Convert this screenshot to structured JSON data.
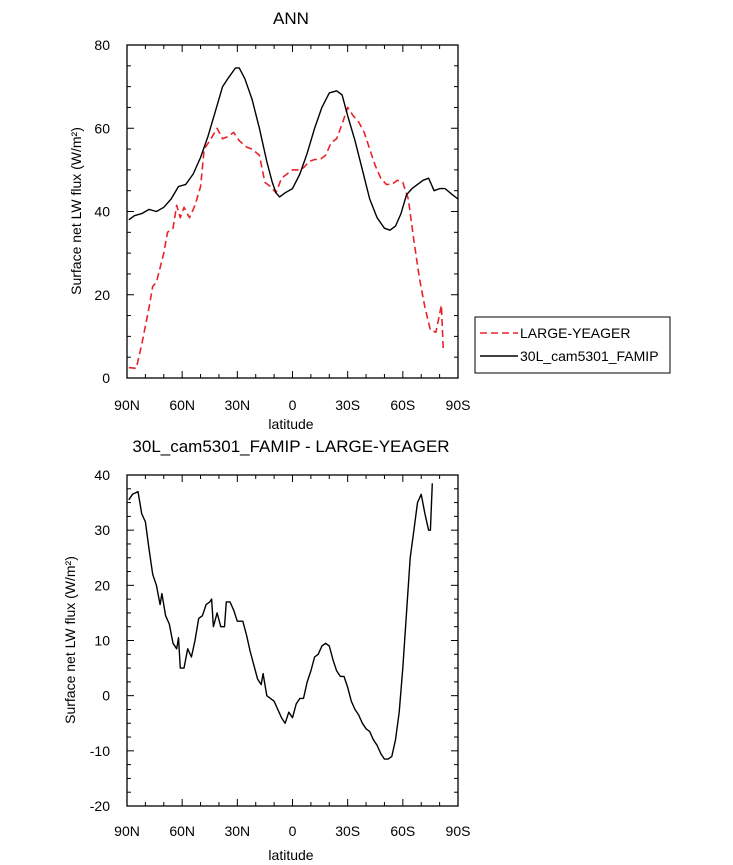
{
  "chart_data": [
    {
      "type": "line",
      "title": "ANN",
      "xlabel": "latitude",
      "ylabel": "Surface net LW flux (W/m²)",
      "xlim": [
        90,
        -90
      ],
      "ylim": [
        0,
        80
      ],
      "xticks": [
        {
          "value": 90,
          "label": "90N"
        },
        {
          "value": 60,
          "label": "60N"
        },
        {
          "value": 30,
          "label": "30N"
        },
        {
          "value": 0,
          "label": "0"
        },
        {
          "value": -30,
          "label": "30S"
        },
        {
          "value": -60,
          "label": "60S"
        },
        {
          "value": -90,
          "label": "90S"
        }
      ],
      "yticks": [
        0,
        20,
        40,
        60,
        80
      ],
      "legend": {
        "placement": "right"
      },
      "series": [
        {
          "name": "LARGE-YEAGER",
          "color": "#e8232b",
          "dash": "dashed",
          "points": [
            [
              89,
              2.5
            ],
            [
              85,
              2.3
            ],
            [
              82,
              8
            ],
            [
              78,
              17
            ],
            [
              76,
              22
            ],
            [
              74,
              23
            ],
            [
              70,
              30
            ],
            [
              68,
              35
            ],
            [
              65,
              36
            ],
            [
              63,
              41.5
            ],
            [
              61,
              38.5
            ],
            [
              59,
              41
            ],
            [
              56,
              38.5
            ],
            [
              53,
              41.5
            ],
            [
              50,
              46
            ],
            [
              48,
              55
            ],
            [
              45,
              57
            ],
            [
              41,
              60
            ],
            [
              38,
              57.5
            ],
            [
              35,
              58
            ],
            [
              32,
              59
            ],
            [
              29,
              57
            ],
            [
              25,
              55.5
            ],
            [
              22,
              55
            ],
            [
              18,
              53.5
            ],
            [
              15,
              47
            ],
            [
              12,
              46
            ],
            [
              9,
              44.5
            ],
            [
              6,
              48
            ],
            [
              3,
              49
            ],
            [
              0,
              50
            ],
            [
              -3,
              50
            ],
            [
              -6,
              50.5
            ],
            [
              -9,
              52
            ],
            [
              -12,
              52.5
            ],
            [
              -15,
              52.5
            ],
            [
              -18,
              53.5
            ],
            [
              -21,
              56.5
            ],
            [
              -24,
              57.5
            ],
            [
              -27,
              61
            ],
            [
              -30,
              65
            ],
            [
              -33,
              63
            ],
            [
              -36,
              61.5
            ],
            [
              -39,
              59
            ],
            [
              -42,
              55
            ],
            [
              -45,
              51
            ],
            [
              -48,
              48
            ],
            [
              -51,
              46.5
            ],
            [
              -54,
              46.5
            ],
            [
              -57,
              47.5
            ],
            [
              -60,
              47
            ],
            [
              -63,
              43
            ],
            [
              -66,
              33
            ],
            [
              -69,
              24
            ],
            [
              -72,
              17
            ],
            [
              -75,
              11.5
            ],
            [
              -78,
              11
            ],
            [
              -81,
              17.5
            ],
            [
              -82,
              6.5
            ]
          ]
        },
        {
          "name": "30L_cam5301_FAMIP",
          "color": "#000000",
          "dash": "solid",
          "points": [
            [
              89,
              38
            ],
            [
              86,
              39
            ],
            [
              82,
              39.5
            ],
            [
              78,
              40.5
            ],
            [
              74,
              40
            ],
            [
              70,
              41
            ],
            [
              66,
              43
            ],
            [
              62,
              46
            ],
            [
              58,
              46.5
            ],
            [
              54,
              49
            ],
            [
              50,
              53
            ],
            [
              46,
              58
            ],
            [
              42,
              64
            ],
            [
              38,
              70
            ],
            [
              35,
              72
            ],
            [
              31,
              74.5
            ],
            [
              29,
              74.5
            ],
            [
              26,
              72
            ],
            [
              22,
              67
            ],
            [
              18,
              60
            ],
            [
              14,
              52
            ],
            [
              11,
              47
            ],
            [
              9,
              44.5
            ],
            [
              7,
              43.5
            ],
            [
              4,
              44.5
            ],
            [
              0,
              45.5
            ],
            [
              -4,
              49
            ],
            [
              -8,
              54
            ],
            [
              -12,
              60
            ],
            [
              -16,
              65
            ],
            [
              -20,
              68.5
            ],
            [
              -24,
              69
            ],
            [
              -27,
              68
            ],
            [
              -30,
              63
            ],
            [
              -34,
              57
            ],
            [
              -38,
              50
            ],
            [
              -42,
              43
            ],
            [
              -46,
              38.5
            ],
            [
              -50,
              36
            ],
            [
              -53,
              35.5
            ],
            [
              -56,
              36.5
            ],
            [
              -59,
              39.5
            ],
            [
              -62,
              44
            ],
            [
              -65,
              45.5
            ],
            [
              -68,
              46.5
            ],
            [
              -71,
              47.5
            ],
            [
              -74,
              48
            ],
            [
              -77,
              45
            ],
            [
              -80,
              45.5
            ],
            [
              -83,
              45.5
            ],
            [
              -87,
              44
            ],
            [
              -90,
              43
            ]
          ]
        }
      ]
    },
    {
      "type": "line",
      "title": "30L_cam5301_FAMIP - LARGE-YEAGER",
      "xlabel": "latitude",
      "ylabel": "Surface net LW flux (W/m²)",
      "xlim": [
        90,
        -90
      ],
      "ylim": [
        -20,
        40
      ],
      "xticks": [
        {
          "value": 90,
          "label": "90N"
        },
        {
          "value": 60,
          "label": "60N"
        },
        {
          "value": 30,
          "label": "30N"
        },
        {
          "value": 0,
          "label": "0"
        },
        {
          "value": -30,
          "label": "30S"
        },
        {
          "value": -60,
          "label": "60S"
        },
        {
          "value": -90,
          "label": "90S"
        }
      ],
      "yticks": [
        -20,
        -10,
        0,
        10,
        20,
        30,
        40
      ],
      "series": [
        {
          "color": "#000000",
          "dash": "solid",
          "points": [
            [
              89,
              35.5
            ],
            [
              87,
              36.5
            ],
            [
              84,
              37
            ],
            [
              82,
              33
            ],
            [
              80,
              31.5
            ],
            [
              78,
              26.5
            ],
            [
              76,
              22
            ],
            [
              74,
              20
            ],
            [
              72,
              16.5
            ],
            [
              71,
              18.5
            ],
            [
              69,
              14.5
            ],
            [
              67,
              13
            ],
            [
              65,
              9.5
            ],
            [
              63,
              8.5
            ],
            [
              62,
              10.5
            ],
            [
              61,
              5
            ],
            [
              59,
              5
            ],
            [
              57,
              8.5
            ],
            [
              55,
              7
            ],
            [
              53,
              10
            ],
            [
              51,
              14
            ],
            [
              49,
              14.5
            ],
            [
              47,
              16.5
            ],
            [
              45,
              17
            ],
            [
              44,
              17.5
            ],
            [
              43,
              12.5
            ],
            [
              41,
              15
            ],
            [
              39,
              12.5
            ],
            [
              37,
              12.5
            ],
            [
              36,
              17
            ],
            [
              34,
              17
            ],
            [
              32,
              15.5
            ],
            [
              30,
              13.5
            ],
            [
              27,
              13.5
            ],
            [
              25,
              11
            ],
            [
              23,
              8
            ],
            [
              21,
              5.5
            ],
            [
              19,
              3
            ],
            [
              17,
              2
            ],
            [
              16,
              4
            ],
            [
              14,
              0
            ],
            [
              12,
              -0.5
            ],
            [
              10,
              -1
            ],
            [
              8,
              -2.5
            ],
            [
              6,
              -4
            ],
            [
              4,
              -5
            ],
            [
              2,
              -3
            ],
            [
              0,
              -4
            ],
            [
              -2,
              -1.5
            ],
            [
              -4,
              -0.5
            ],
            [
              -6,
              -0.5
            ],
            [
              -8,
              2.5
            ],
            [
              -10,
              4.5
            ],
            [
              -12,
              7
            ],
            [
              -14,
              7.5
            ],
            [
              -16,
              9
            ],
            [
              -18,
              9.5
            ],
            [
              -20,
              9
            ],
            [
              -22,
              6.5
            ],
            [
              -24,
              4.5
            ],
            [
              -26,
              3.5
            ],
            [
              -28,
              3.5
            ],
            [
              -30,
              1.5
            ],
            [
              -32,
              -1
            ],
            [
              -34,
              -2.5
            ],
            [
              -36,
              -3.5
            ],
            [
              -38,
              -5
            ],
            [
              -40,
              -6
            ],
            [
              -42,
              -6.5
            ],
            [
              -44,
              -8
            ],
            [
              -46,
              -9
            ],
            [
              -48,
              -10.5
            ],
            [
              -50,
              -11.5
            ],
            [
              -52,
              -11.5
            ],
            [
              -54,
              -11
            ],
            [
              -56,
              -8
            ],
            [
              -58,
              -3
            ],
            [
              -60,
              5
            ],
            [
              -62,
              15
            ],
            [
              -64,
              25
            ],
            [
              -66,
              30
            ],
            [
              -68,
              35
            ],
            [
              -70,
              36.5
            ],
            [
              -72,
              33
            ],
            [
              -74,
              30
            ],
            [
              -75,
              30
            ],
            [
              -76,
              38.5
            ]
          ]
        }
      ]
    }
  ]
}
